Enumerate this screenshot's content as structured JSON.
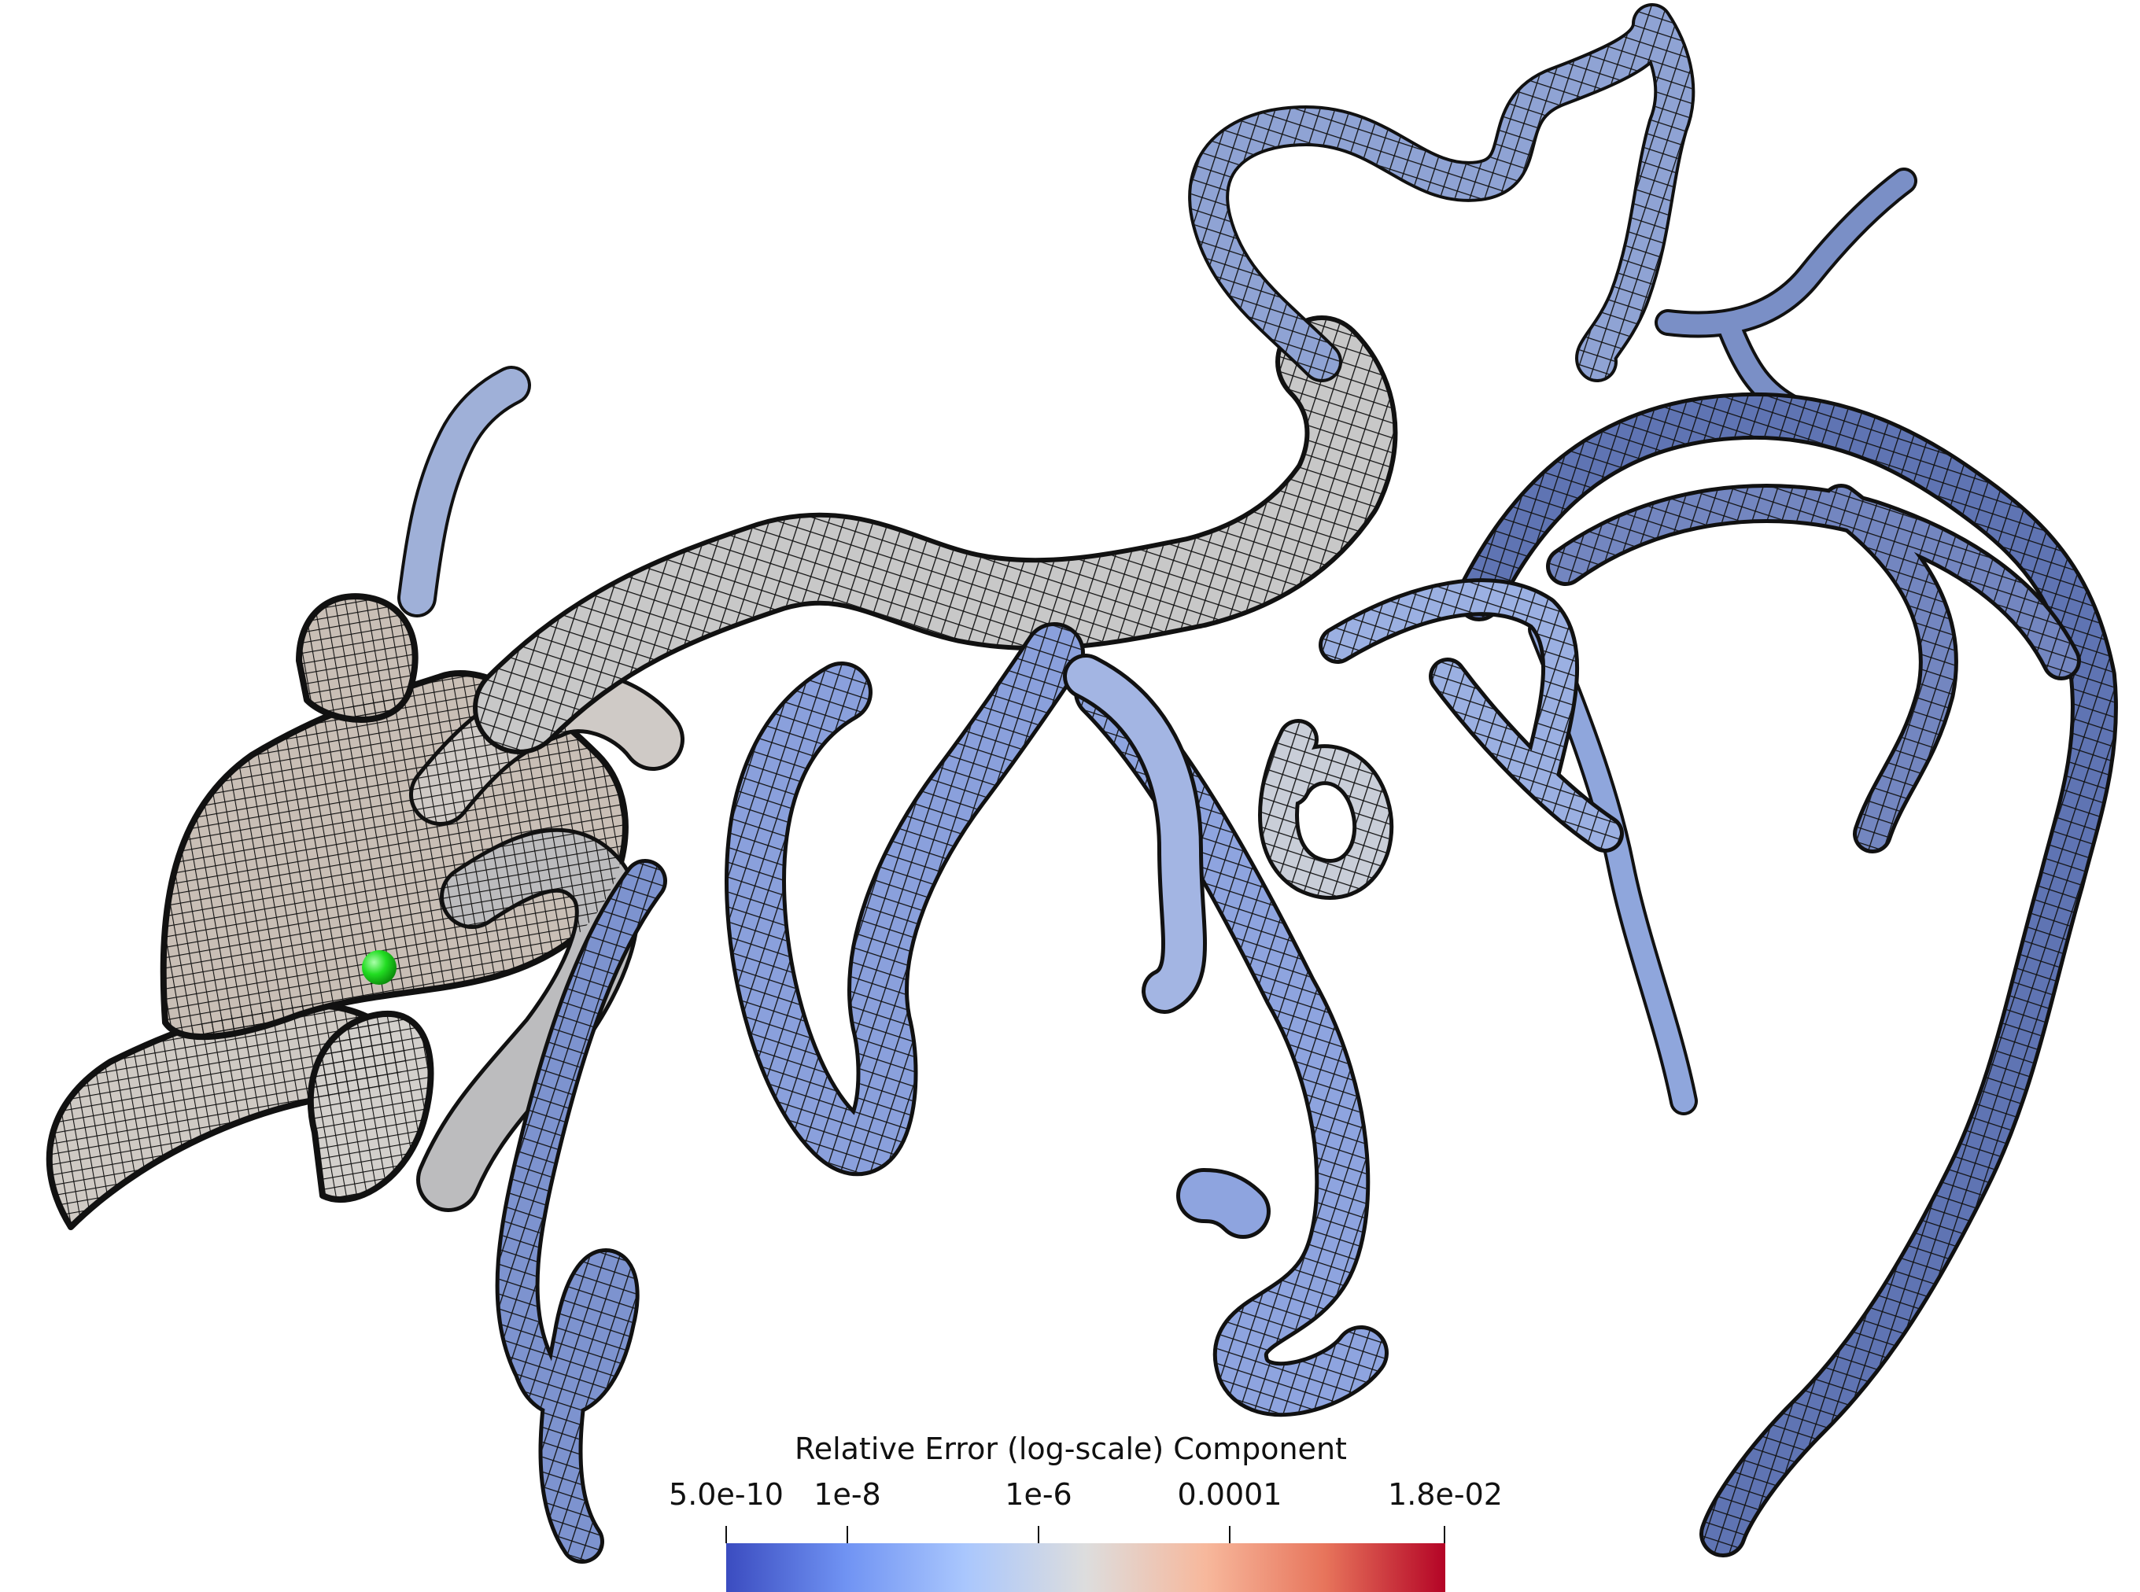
{
  "scene": {
    "marker_color": "#22dd22",
    "mesh_line_color": "#111111",
    "low_color": "#3b4cc0",
    "mid_color": "#dddddd",
    "high_color": "#b40426"
  },
  "colorbar": {
    "title": "Relative Error (log-scale) Component",
    "ticks": [
      "5.0e-10",
      "1e-8",
      "1e-6",
      "0.0001",
      "1.8e-02"
    ],
    "stops": [
      "#3b4cc0",
      "#7093f3",
      "#aac7fd",
      "#dddddd",
      "#f7b89c",
      "#e7745b",
      "#b40426"
    ]
  }
}
